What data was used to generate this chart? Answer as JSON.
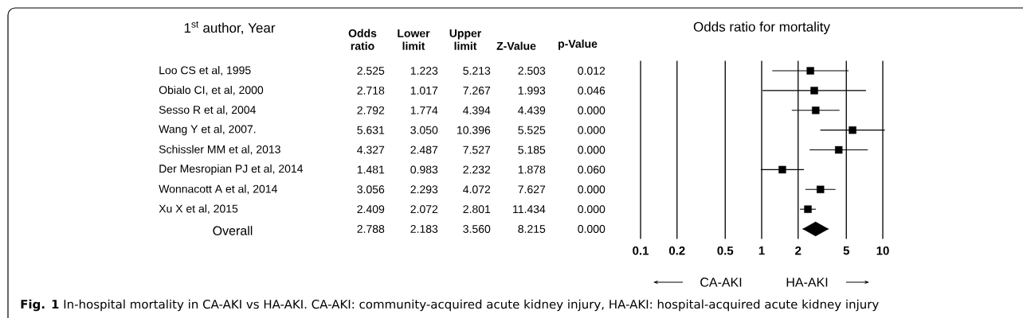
{
  "chart_data": [
    {
      "type": "other",
      "title": "1$^{st}$ author, Year",
      "categories": [
        "Odds ratio",
        "Lower limit",
        "Upper limit",
        "Z-Value",
        "p-Value"
      ],
      "y_categories": [
        "Loo CS et al, 1995",
        "Obialo CI, et al, 2000",
        "Sesso R et al, 2004",
        "Wang Y et al, 2007.",
        "Schissler MM et al, 2013",
        "Der Mesropian PJ et al, 2014",
        "Wonnacott A et al, 2014",
        "Xu X et al, 2015",
        "Overall"
      ],
      "cell_labels": [
        [
          "2.525",
          "1.223",
          "5.213",
          "2.503",
          "0.012"
        ],
        [
          "2.718",
          "1.017",
          "7.267",
          "1.993",
          "0.046"
        ],
        [
          "2.792",
          "1.774",
          "4.394",
          "4.439",
          "0.000"
        ],
        [
          "5.631",
          "3.050",
          "10.396",
          "5.525",
          "0.000"
        ],
        [
          "4.327",
          "2.487",
          "7.527",
          "5.185",
          "0.000"
        ],
        [
          "1.481",
          "0.983",
          "2.232",
          "1.878",
          "0.060"
        ],
        [
          "3.056",
          "2.293",
          "4.072",
          "7.627",
          "0.000"
        ],
        [
          "2.409",
          "2.072",
          "2.801",
          "11.434",
          "0.000"
        ],
        [
          "2.788",
          "2.183",
          "3.560",
          "8.215",
          "0.000"
        ]
      ]
    },
    {
      "type": "scatter",
      "title": "Odds ratio for mortality",
      "orientation": "horizontal",
      "log": "x",
      "grid": "x",
      "categories": [
        null,
        null,
        null,
        null,
        null,
        null,
        null,
        null,
        null
      ],
      "xlim": [
        0.1,
        10
      ],
      "xticks": [
        0.1,
        0.2,
        0.5,
        1,
        2,
        5,
        10
      ],
      "series": [
        {
          "color": "#000000",
          "marker": "square",
          "values": [
            2.525,
            2.718,
            2.792,
            5.631,
            4.327,
            1.481,
            3.056,
            2.409,
            null
          ],
          "errors": [
            [
              1.223,
              5.213
            ],
            [
              1.017,
              7.267
            ],
            [
              1.774,
              4.394
            ],
            [
              3.05,
              10.396
            ],
            [
              2.487,
              7.527
            ],
            [
              0.983,
              2.232
            ],
            [
              2.293,
              4.072
            ],
            [
              2.072,
              2.801
            ],
            null
          ]
        },
        {
          "color": "#000000",
          "marker": "diamond",
          "values": [
            null,
            null,
            null,
            null,
            null,
            null,
            null,
            null,
            2.788
          ],
          "errors": [
            null,
            null,
            null,
            null,
            null,
            null,
            null,
            null,
            [
              2.183,
              3.56
            ]
          ]
        }
      ],
      "annotations": [
        "CA-AKI",
        "HA-AKI",
        "**Fig. 1** In-hospital mortality in CA-AKI vs HA-AKI. CA-AKI: community-acquired acute kidney injury, HA-AKI: hospital-acquired acute kidney injury"
      ]
    }
  ]
}
